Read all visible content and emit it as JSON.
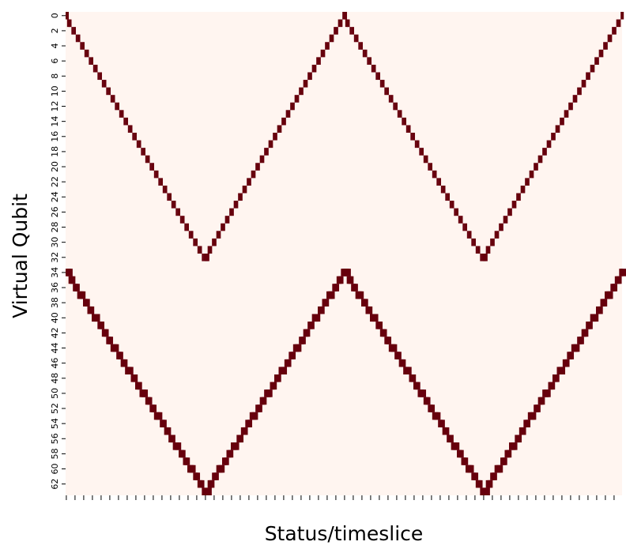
{
  "chart_data": {
    "type": "heatmap",
    "xlabel": "Status/timeslice",
    "ylabel": "Virtual Qubit",
    "y_rows": 64,
    "x_cols": 384,
    "y_tick_labels": [
      "0",
      "2",
      "4",
      "6",
      "8",
      "10",
      "12",
      "14",
      "16",
      "18",
      "20",
      "22",
      "24",
      "26",
      "28",
      "30",
      "32",
      "34",
      "36",
      "38",
      "40",
      "42",
      "44",
      "46",
      "48",
      "50",
      "52",
      "54",
      "56",
      "58",
      "60",
      "62"
    ],
    "x_tick_labels_visible": false,
    "colorbar": false,
    "colors": {
      "background": "#fff5f0",
      "active": "#67000d"
    },
    "upper_band": {
      "qubit_range": [
        0,
        32
      ],
      "vertex_qubits": [
        0,
        32,
        0,
        32,
        0
      ],
      "vertex_timeslices": [
        0,
        96,
        192,
        288,
        384
      ],
      "line_width_slices": 2
    },
    "lower_band": {
      "qubit_range": [
        34,
        63
      ],
      "vertex_qubits": [
        34,
        63,
        34,
        63,
        34
      ],
      "vertex_timeslices": [
        0,
        96,
        192,
        288,
        384
      ],
      "line_width_slices": 5
    }
  }
}
